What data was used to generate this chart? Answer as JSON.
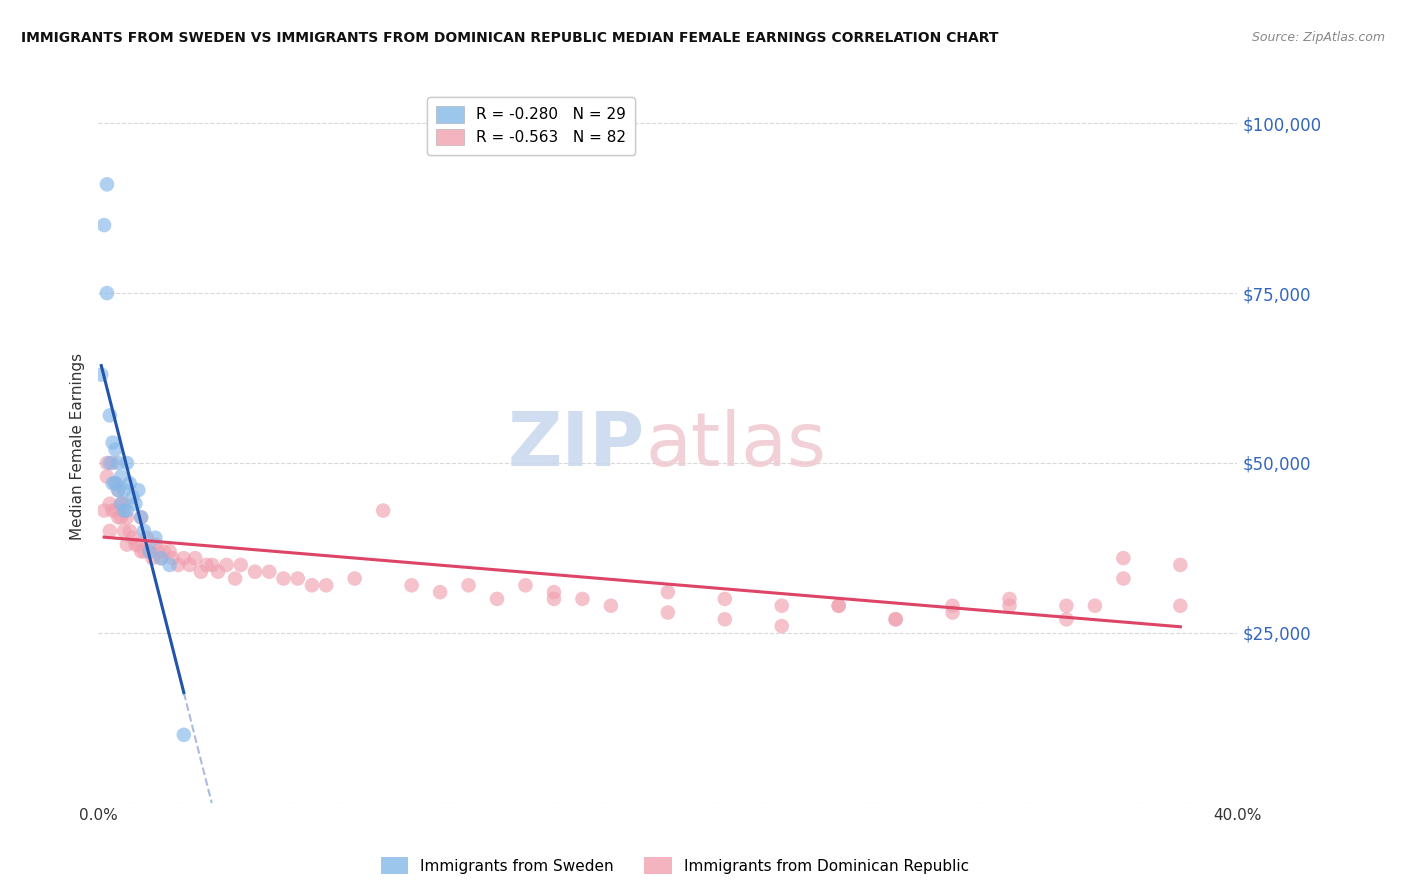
{
  "title": "IMMIGRANTS FROM SWEDEN VS IMMIGRANTS FROM DOMINICAN REPUBLIC MEDIAN FEMALE EARNINGS CORRELATION CHART",
  "source": "Source: ZipAtlas.com",
  "ylabel": "Median Female Earnings",
  "yticks": [
    0,
    25000,
    50000,
    75000,
    100000
  ],
  "ytick_labels": [
    "",
    "$25,000",
    "$50,000",
    "$75,000",
    "$100,000"
  ],
  "xlim": [
    0.0,
    0.4
  ],
  "ylim": [
    0,
    105000
  ],
  "background_color": "#ffffff",
  "grid_color": "#d8d8d8",
  "sweden_color": "#85b8e8",
  "dr_color": "#f0a0b0",
  "sweden_line_color": "#2255aa",
  "dr_line_color": "#dd4466",
  "dashed_line_color": "#aabbdd",
  "sweden_R": -0.28,
  "sweden_N": 29,
  "dr_R": -0.563,
  "dr_N": 82,
  "legend_label_sweden": "Immigrants from Sweden",
  "legend_label_dr": "Immigrants from Dominican Republic",
  "sweden_x": [
    0.001,
    0.002,
    0.003,
    0.003,
    0.004,
    0.004,
    0.005,
    0.005,
    0.006,
    0.006,
    0.007,
    0.007,
    0.008,
    0.008,
    0.009,
    0.009,
    0.01,
    0.01,
    0.011,
    0.012,
    0.013,
    0.014,
    0.015,
    0.016,
    0.018,
    0.02,
    0.022,
    0.025,
    0.03
  ],
  "sweden_y": [
    63000,
    85000,
    91000,
    75000,
    57000,
    50000,
    53000,
    47000,
    52000,
    47000,
    50000,
    46000,
    48000,
    44000,
    46000,
    43000,
    50000,
    43000,
    47000,
    45000,
    44000,
    46000,
    42000,
    40000,
    37000,
    39000,
    36000,
    35000,
    10000
  ],
  "dr_x": [
    0.002,
    0.003,
    0.003,
    0.004,
    0.004,
    0.005,
    0.005,
    0.006,
    0.006,
    0.007,
    0.007,
    0.008,
    0.008,
    0.009,
    0.009,
    0.01,
    0.01,
    0.011,
    0.012,
    0.013,
    0.014,
    0.015,
    0.015,
    0.016,
    0.017,
    0.018,
    0.019,
    0.02,
    0.021,
    0.022,
    0.023,
    0.025,
    0.026,
    0.028,
    0.03,
    0.032,
    0.034,
    0.036,
    0.038,
    0.04,
    0.042,
    0.045,
    0.048,
    0.05,
    0.055,
    0.06,
    0.065,
    0.07,
    0.075,
    0.08,
    0.09,
    0.1,
    0.11,
    0.12,
    0.13,
    0.14,
    0.15,
    0.16,
    0.17,
    0.18,
    0.2,
    0.22,
    0.24,
    0.26,
    0.28,
    0.3,
    0.32,
    0.34,
    0.36,
    0.38,
    0.38,
    0.36,
    0.35,
    0.34,
    0.32,
    0.3,
    0.28,
    0.26,
    0.24,
    0.22,
    0.2,
    0.16
  ],
  "dr_y": [
    43000,
    48000,
    50000,
    44000,
    40000,
    50000,
    43000,
    47000,
    43000,
    46000,
    42000,
    44000,
    42000,
    44000,
    40000,
    42000,
    38000,
    40000,
    39000,
    38000,
    38000,
    42000,
    37000,
    37000,
    39000,
    37000,
    36000,
    38000,
    37000,
    36000,
    37000,
    37000,
    36000,
    35000,
    36000,
    35000,
    36000,
    34000,
    35000,
    35000,
    34000,
    35000,
    33000,
    35000,
    34000,
    34000,
    33000,
    33000,
    32000,
    32000,
    33000,
    43000,
    32000,
    31000,
    32000,
    30000,
    32000,
    31000,
    30000,
    29000,
    31000,
    30000,
    29000,
    29000,
    27000,
    29000,
    30000,
    29000,
    36000,
    29000,
    35000,
    33000,
    29000,
    27000,
    29000,
    28000,
    27000,
    29000,
    26000,
    27000,
    28000,
    30000
  ]
}
